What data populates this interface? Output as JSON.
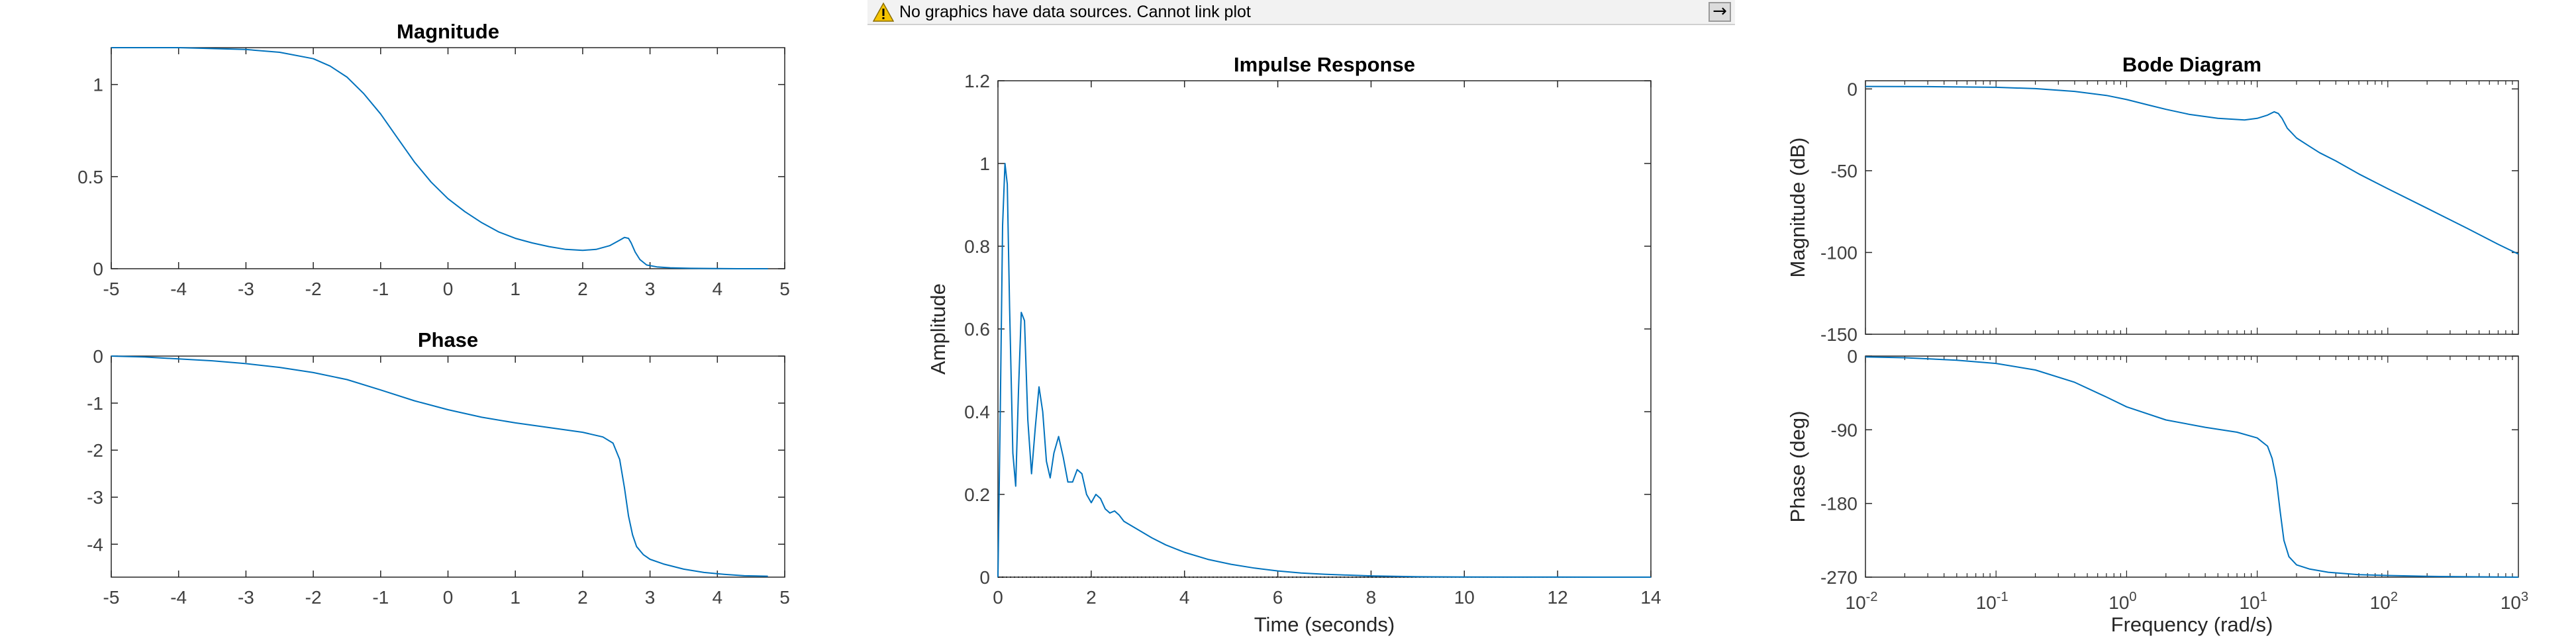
{
  "warning_bar": {
    "message": "No graphics have data sources. Cannot link plot",
    "icon": "warning-icon",
    "action_icon": "arrow-right-icon",
    "action_label": "→"
  },
  "colors": {
    "line": "#0072BD",
    "axis": "#262626",
    "tick_label": "#404040",
    "warning_fill": "#f5c400"
  },
  "chart_data": [
    {
      "id": "magnitude",
      "type": "line",
      "title": "Magnitude",
      "xlabel": "",
      "ylabel": "",
      "xlim": [
        -5,
        5
      ],
      "ylim": [
        0,
        1.2
      ],
      "xticks": [
        -5,
        -4,
        -3,
        -2,
        -1,
        0,
        1,
        2,
        3,
        4,
        5
      ],
      "yticks": [
        0,
        0.5,
        1
      ],
      "ytick_labels": [
        "0",
        "0.5",
        "1"
      ],
      "grid": false,
      "series": [
        {
          "x": [
            -5,
            -4.5,
            -4,
            -3.5,
            -3,
            -2.5,
            -2,
            -1.75,
            -1.5,
            -1.25,
            -1,
            -0.75,
            -0.5,
            -0.25,
            0,
            0.25,
            0.5,
            0.75,
            1,
            1.25,
            1.5,
            1.75,
            2,
            2.2,
            2.4,
            2.55,
            2.62,
            2.68,
            2.72,
            2.78,
            2.85,
            2.95,
            3.1,
            3.3,
            3.6,
            4,
            4.3,
            4.6,
            4.75
          ],
          "y": [
            1.2,
            1.2,
            1.2,
            1.195,
            1.19,
            1.175,
            1.14,
            1.1,
            1.04,
            0.95,
            0.84,
            0.71,
            0.58,
            0.47,
            0.38,
            0.31,
            0.25,
            0.2,
            0.165,
            0.14,
            0.12,
            0.105,
            0.1,
            0.105,
            0.125,
            0.155,
            0.17,
            0.165,
            0.14,
            0.09,
            0.05,
            0.02,
            0.01,
            0.005,
            0.002,
            0.001,
            0.0,
            0.0,
            0.0
          ]
        }
      ]
    },
    {
      "id": "phase",
      "type": "line",
      "title": "Phase",
      "xlabel": "",
      "ylabel": "",
      "xlim": [
        -5,
        5
      ],
      "ylim": [
        -4.7,
        0
      ],
      "xticks": [
        -5,
        -4,
        -3,
        -2,
        -1,
        0,
        1,
        2,
        3,
        4,
        5
      ],
      "yticks": [
        0,
        -1,
        -2,
        -3,
        -4
      ],
      "ytick_labels": [
        "0",
        "-1",
        "-2",
        "-3",
        "-4"
      ],
      "grid": false,
      "series": [
        {
          "x": [
            -5,
            -4.5,
            -4,
            -3.5,
            -3,
            -2.5,
            -2,
            -1.5,
            -1,
            -0.5,
            0,
            0.5,
            1,
            1.5,
            2,
            2.3,
            2.45,
            2.55,
            2.62,
            2.68,
            2.74,
            2.8,
            2.9,
            3.0,
            3.2,
            3.5,
            3.8,
            4.1,
            4.4,
            4.75
          ],
          "y": [
            0,
            -0.02,
            -0.06,
            -0.1,
            -0.16,
            -0.24,
            -0.35,
            -0.5,
            -0.72,
            -0.95,
            -1.14,
            -1.3,
            -1.42,
            -1.52,
            -1.62,
            -1.72,
            -1.85,
            -2.2,
            -2.8,
            -3.4,
            -3.8,
            -4.05,
            -4.22,
            -4.32,
            -4.42,
            -4.53,
            -4.6,
            -4.64,
            -4.67,
            -4.68
          ]
        }
      ]
    },
    {
      "id": "impulse",
      "type": "line",
      "title": "Impulse Response",
      "xlabel": "Time (seconds)",
      "ylabel": "Amplitude",
      "xlim": [
        0,
        14
      ],
      "ylim": [
        0,
        1.2
      ],
      "xticks": [
        0,
        2,
        4,
        6,
        8,
        10,
        12,
        14
      ],
      "yticks": [
        0,
        0.2,
        0.4,
        0.6,
        0.8,
        1,
        1.2
      ],
      "ytick_labels": [
        "0",
        "0.2",
        "0.4",
        "0.6",
        "0.8",
        "1",
        "1.2"
      ],
      "grid": false,
      "series": [
        {
          "x": [
            0,
            0.05,
            0.1,
            0.15,
            0.2,
            0.25,
            0.32,
            0.38,
            0.44,
            0.5,
            0.57,
            0.64,
            0.72,
            0.8,
            0.88,
            0.96,
            1.04,
            1.12,
            1.2,
            1.3,
            1.4,
            1.5,
            1.6,
            1.7,
            1.8,
            1.9,
            2.0,
            2.1,
            2.2,
            2.3,
            2.4,
            2.5,
            2.6,
            2.7,
            2.85,
            3.0,
            3.3,
            3.6,
            4.0,
            4.5,
            5.0,
            5.5,
            6.0,
            6.5,
            7.0,
            7.5,
            8.0,
            9.0,
            10.0,
            11.0,
            12.0,
            13.0,
            14.0
          ],
          "y": [
            0,
            0.4,
            0.85,
            1.0,
            0.95,
            0.65,
            0.3,
            0.22,
            0.45,
            0.64,
            0.62,
            0.38,
            0.25,
            0.36,
            0.46,
            0.4,
            0.28,
            0.24,
            0.3,
            0.34,
            0.29,
            0.23,
            0.23,
            0.26,
            0.25,
            0.2,
            0.18,
            0.2,
            0.19,
            0.165,
            0.155,
            0.16,
            0.15,
            0.135,
            0.125,
            0.115,
            0.095,
            0.078,
            0.06,
            0.043,
            0.031,
            0.022,
            0.015,
            0.01,
            0.007,
            0.005,
            0.003,
            0.001,
            0.0005,
            0.0002,
            0.0001,
            0.0,
            0.0
          ]
        }
      ]
    },
    {
      "id": "bode-magnitude",
      "type": "line",
      "title": "Bode Diagram",
      "xlabel": "",
      "ylabel": "Magnitude (dB)",
      "xscale": "log",
      "xlim": [
        0.01,
        1000
      ],
      "ylim": [
        -150,
        5
      ],
      "yticks": [
        0,
        -50,
        -100,
        -150
      ],
      "ytick_labels": [
        "0",
        "-50",
        "-100",
        "-150"
      ],
      "grid": false,
      "series": [
        {
          "x": [
            0.01,
            0.03,
            0.1,
            0.2,
            0.4,
            0.7,
            1,
            1.5,
            2,
            3,
            5,
            8,
            10,
            12,
            13.5,
            14.5,
            15.5,
            17,
            20,
            25,
            30,
            40,
            60,
            100,
            200,
            400,
            700,
            1000
          ],
          "y": [
            1.5,
            1.4,
            1.0,
            0.2,
            -1.5,
            -4,
            -6.5,
            -10,
            -12.5,
            -15.5,
            -18,
            -19,
            -18,
            -16,
            -14,
            -15,
            -18,
            -24,
            -30,
            -35,
            -39,
            -44,
            -52,
            -61,
            -73,
            -85,
            -95,
            -101
          ]
        }
      ]
    },
    {
      "id": "bode-phase",
      "type": "line",
      "title": "",
      "xlabel": "Frequency  (rad/s)",
      "ylabel": "Phase (deg)",
      "xscale": "log",
      "xlim": [
        0.01,
        1000
      ],
      "ylim": [
        -270,
        0
      ],
      "yticks": [
        0,
        -90,
        -180,
        -270
      ],
      "ytick_labels": [
        "0",
        "-90",
        "-180",
        "-270"
      ],
      "xtick_labels": [
        "10-2",
        "10-1",
        "100",
        "101",
        "102",
        "103"
      ],
      "grid": false,
      "series": [
        {
          "x": [
            0.01,
            0.02,
            0.05,
            0.1,
            0.2,
            0.4,
            0.7,
            1,
            2,
            4,
            7,
            10,
            12,
            13,
            14,
            15,
            16,
            17.5,
            20,
            25,
            35,
            60,
            100,
            200,
            400,
            1000
          ],
          "y": [
            -1,
            -2,
            -5,
            -9,
            -17,
            -32,
            -50,
            -62,
            -78,
            -87,
            -93,
            -100,
            -110,
            -125,
            -150,
            -190,
            -225,
            -245,
            -255,
            -260,
            -264,
            -267,
            -268,
            -269,
            -269.5,
            -270
          ]
        }
      ]
    }
  ]
}
